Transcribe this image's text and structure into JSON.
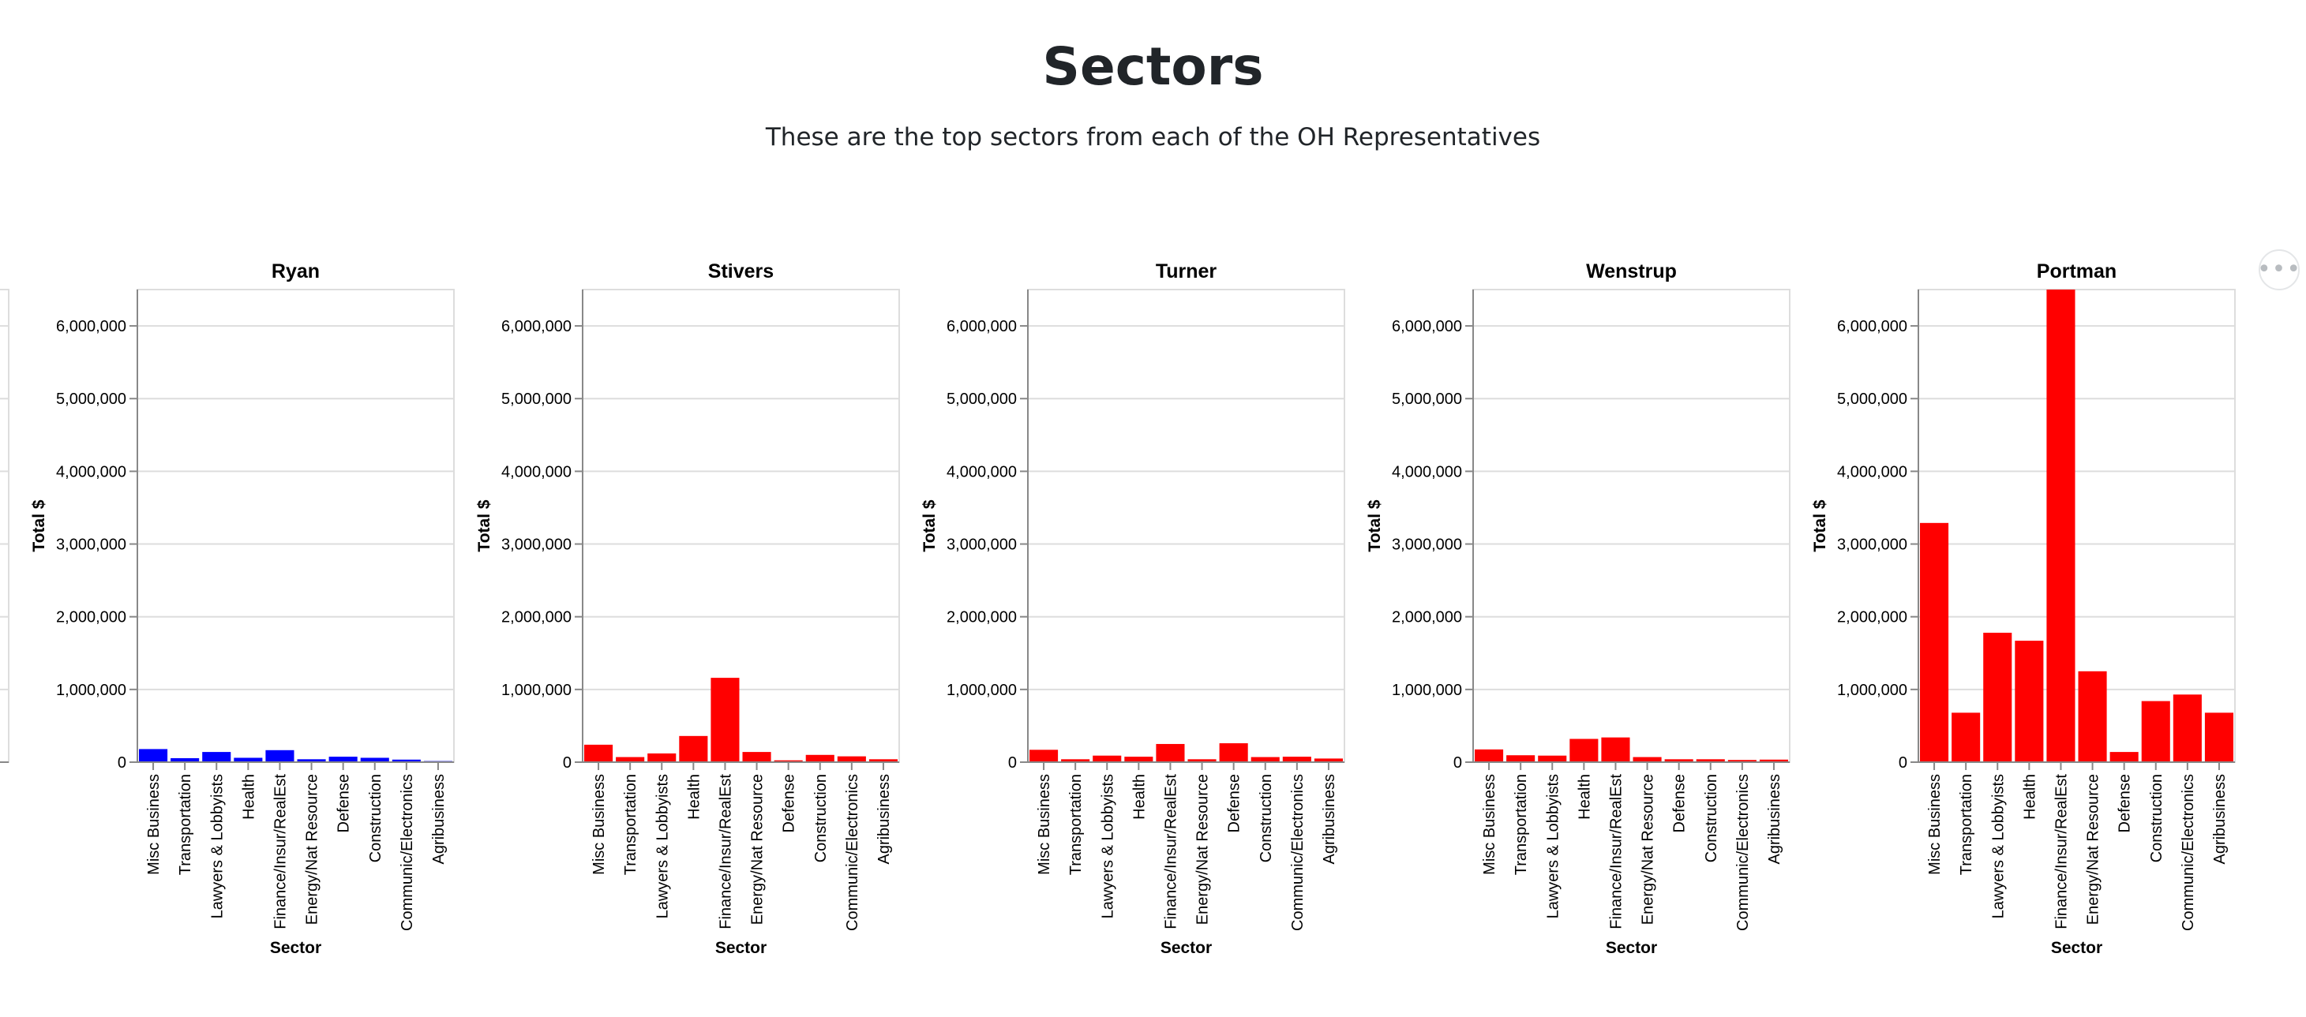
{
  "header": {
    "title": "Sectors",
    "subtitle": "These are the top sectors from each of the OH Representatives"
  },
  "colors": {
    "gop": "#ff0000",
    "dem": "#0000ff",
    "grid": "#dddddd",
    "axis": "#888888"
  },
  "more_button": {
    "icon": "more-horizontal-icon",
    "glyph": "•••"
  },
  "chart_data": [
    {
      "type": "bar",
      "title": "",
      "categories": [
        "Misc Business",
        "Transportation",
        "Lawyers & Lobbyists",
        "Health",
        "Finance/Insur/RealEst",
        "Energy/Nat Resource",
        "Defense",
        "Construction",
        "Communic/Electronics",
        "Agribusiness"
      ],
      "series": [
        {
          "values": [
            60000,
            null,
            null,
            null,
            null,
            null,
            null,
            null,
            null,
            null
          ]
        }
      ],
      "color": "#ff0000",
      "xlabel": "",
      "ylabel": "",
      "ylim": [
        0,
        6500000
      ],
      "grid": true,
      "partial": true
    },
    {
      "type": "bar",
      "title": "Ryan",
      "categories": [
        "Misc Business",
        "Transportation",
        "Lawyers & Lobbyists",
        "Health",
        "Finance/Insur/RealEst",
        "Energy/Nat Resource",
        "Defense",
        "Construction",
        "Communic/Electronics",
        "Agribusiness"
      ],
      "series": [
        {
          "values": [
            180000,
            55000,
            140000,
            60000,
            165000,
            40000,
            75000,
            60000,
            35000,
            15000
          ]
        }
      ],
      "color": "#0000ff",
      "xlabel": "Sector",
      "ylabel": "Total $",
      "yticks": [
        "0",
        "1,000,000",
        "2,000,000",
        "3,000,000",
        "4,000,000",
        "5,000,000",
        "6,000,000"
      ],
      "ylim": [
        0,
        6500000
      ],
      "grid": true
    },
    {
      "type": "bar",
      "title": "Stivers",
      "categories": [
        "Misc Business",
        "Transportation",
        "Lawyers & Lobbyists",
        "Health",
        "Finance/Insur/RealEst",
        "Energy/Nat Resource",
        "Defense",
        "Construction",
        "Communic/Electronics",
        "Agribusiness"
      ],
      "series": [
        {
          "values": [
            240000,
            70000,
            120000,
            360000,
            1160000,
            140000,
            25000,
            100000,
            80000,
            40000
          ]
        }
      ],
      "color": "#ff0000",
      "xlabel": "Sector",
      "ylabel": "Total $",
      "yticks": [
        "0",
        "1,000,000",
        "2,000,000",
        "3,000,000",
        "4,000,000",
        "5,000,000",
        "6,000,000"
      ],
      "ylim": [
        0,
        6500000
      ],
      "grid": true
    },
    {
      "type": "bar",
      "title": "Turner",
      "categories": [
        "Misc Business",
        "Transportation",
        "Lawyers & Lobbyists",
        "Health",
        "Finance/Insur/RealEst",
        "Energy/Nat Resource",
        "Defense",
        "Construction",
        "Communic/Electronics",
        "Agribusiness"
      ],
      "series": [
        {
          "values": [
            170000,
            40000,
            90000,
            75000,
            250000,
            40000,
            260000,
            70000,
            75000,
            50000
          ]
        }
      ],
      "color": "#ff0000",
      "xlabel": "Sector",
      "ylabel": "Total $",
      "yticks": [
        "0",
        "1,000,000",
        "2,000,000",
        "3,000,000",
        "4,000,000",
        "5,000,000",
        "6,000,000"
      ],
      "ylim": [
        0,
        6500000
      ],
      "grid": true
    },
    {
      "type": "bar",
      "title": "Wenstrup",
      "categories": [
        "Misc Business",
        "Transportation",
        "Lawyers & Lobbyists",
        "Health",
        "Finance/Insur/RealEst",
        "Energy/Nat Resource",
        "Defense",
        "Construction",
        "Communic/Electronics",
        "Agribusiness"
      ],
      "series": [
        {
          "values": [
            175000,
            95000,
            90000,
            320000,
            340000,
            70000,
            40000,
            40000,
            30000,
            35000
          ]
        }
      ],
      "color": "#ff0000",
      "xlabel": "Sector",
      "ylabel": "Total $",
      "yticks": [
        "0",
        "1,000,000",
        "2,000,000",
        "3,000,000",
        "4,000,000",
        "5,000,000",
        "6,000,000"
      ],
      "ylim": [
        0,
        6500000
      ],
      "grid": true
    },
    {
      "type": "bar",
      "title": "Portman",
      "categories": [
        "Misc Business",
        "Transportation",
        "Lawyers & Lobbyists",
        "Health",
        "Finance/Insur/RealEst",
        "Energy/Nat Resource",
        "Defense",
        "Construction",
        "Communic/Electronics",
        "Agribusiness"
      ],
      "series": [
        {
          "values": [
            3290000,
            680000,
            1780000,
            1670000,
            6500000,
            1250000,
            140000,
            840000,
            930000,
            680000
          ]
        }
      ],
      "color": "#ff0000",
      "xlabel": "Sector",
      "ylabel": "Total $",
      "yticks": [
        "0",
        "1,000,000",
        "2,000,000",
        "3,000,000",
        "4,000,000",
        "5,000,000",
        "6,000,000"
      ],
      "ylim": [
        0,
        6500000
      ],
      "grid": true
    }
  ]
}
